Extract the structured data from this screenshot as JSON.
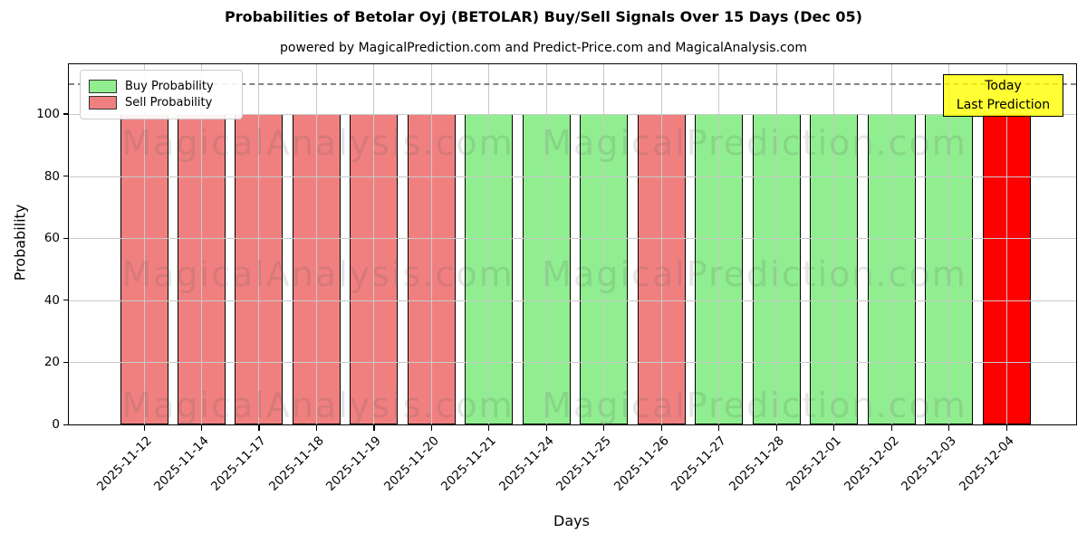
{
  "figure": {
    "title": "Probabilities of Betolar Oyj (BETOLAR) Buy/Sell Signals Over 15 Days (Dec 05)",
    "subtitle": "powered by MagicalPrediction.com and Predict-Price.com and MagicalAnalysis.com"
  },
  "legend": {
    "items": [
      {
        "label": "Buy Probability",
        "color": "#90EE90"
      },
      {
        "label": "Sell Probability",
        "color": "#F08080"
      }
    ]
  },
  "annotation_box": {
    "line1": "Today",
    "line2": "Last Prediction",
    "bg_color": "#FFFF00",
    "border_color": "#000000"
  },
  "watermarks": {
    "left_text": "MagicalAnalysis.com",
    "right_text": "MagicalPrediction.com"
  },
  "chart_data": {
    "type": "bar",
    "title": "Probabilities of Betolar Oyj (BETOLAR) Buy/Sell Signals Over 15 Days (Dec 05)",
    "subtitle": "powered by MagicalPrediction.com and Predict-Price.com and MagicalAnalysis.com",
    "xlabel": "Days",
    "ylabel": "Probability",
    "categories": [
      "2025-11-12",
      "2025-11-14",
      "2025-11-17",
      "2025-11-18",
      "2025-11-19",
      "2025-11-20",
      "2025-11-21",
      "2025-11-24",
      "2025-11-25",
      "2025-11-26",
      "2025-11-27",
      "2025-11-28",
      "2025-12-01",
      "2025-12-02",
      "2025-12-03",
      "2025-12-04"
    ],
    "values": [
      100,
      100,
      100,
      100,
      100,
      100,
      100,
      100,
      100,
      100,
      100,
      100,
      100,
      100,
      100,
      100
    ],
    "bar_signals": [
      "sell",
      "sell",
      "sell",
      "sell",
      "sell",
      "sell",
      "buy",
      "buy",
      "buy",
      "sell",
      "buy",
      "buy",
      "buy",
      "buy",
      "buy",
      "last_prediction"
    ],
    "colors": {
      "buy": "#90EE90",
      "sell": "#F08080",
      "last_prediction": "#FF0000"
    },
    "yticks": [
      0,
      20,
      40,
      60,
      80,
      100
    ],
    "ylim": [
      0,
      116
    ],
    "dashed_line_y": 110,
    "grid": true,
    "legend_position": "upper left",
    "x_tick_rotation": 45
  }
}
